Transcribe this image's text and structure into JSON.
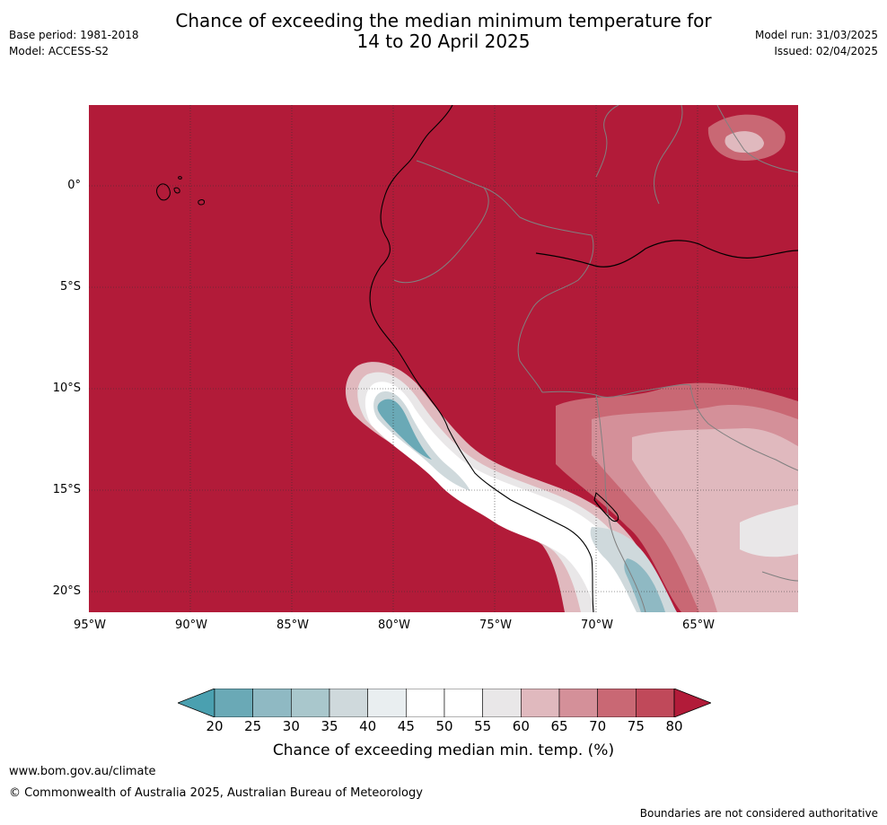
{
  "header": {
    "title_line1": "Chance of exceeding the median minimum temperature for",
    "title_line2": "14 to 20 April 2025",
    "base_period": "Base period: 1981-2018",
    "model": "Model: ACCESS-S2",
    "model_run": "Model run: 31/03/2025",
    "issued": "Issued: 02/04/2025"
  },
  "map": {
    "lat_labels": [
      "0°",
      "5°S",
      "10°S",
      "15°S",
      "20°S"
    ],
    "lon_labels": [
      "95°W",
      "90°W",
      "85°W",
      "80°W",
      "75°W",
      "70°W",
      "65°W"
    ],
    "colors": {
      "above80": "#b21b39",
      "c75_80": "#c0495a",
      "c70_75": "#c96874",
      "c65_70": "#d49099",
      "c60_65": "#e0b9be",
      "c55_60": "#e9e7e8",
      "c45_55": "#ffffff",
      "c40_45": "#e9eef0",
      "c35_40": "#cfd9dc",
      "c30_35": "#a9c7cc",
      "c25_30": "#8fb9c3",
      "c20_25": "#6aa9b6",
      "below20": "#4aa0b0",
      "coastline": "#000000",
      "borders": "#808080"
    }
  },
  "colorbar": {
    "ticks": [
      "20",
      "25",
      "30",
      "35",
      "40",
      "45",
      "50",
      "55",
      "60",
      "65",
      "70",
      "75",
      "80"
    ],
    "label": "Chance of exceeding median min. temp. (%)"
  },
  "footer": {
    "website": "www.bom.gov.au/climate",
    "copyright": "© Commonwealth of Australia 2025, Australian Bureau of Meteorology",
    "disclaimer": "Boundaries are not considered authoritative"
  }
}
